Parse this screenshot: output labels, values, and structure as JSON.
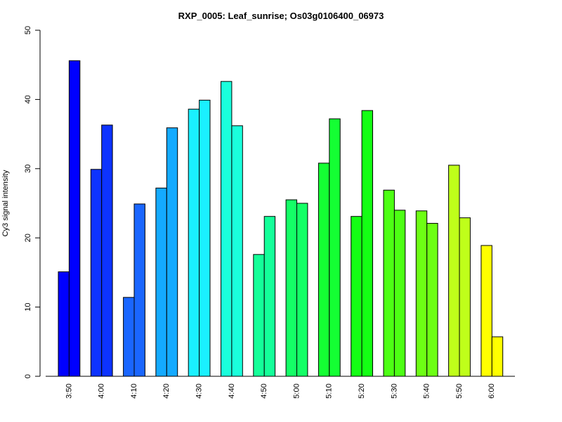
{
  "chart_data": {
    "type": "bar",
    "title": "RXP_0005: Leaf_sunrise; Os03g0106400_06973",
    "xlabel": "",
    "ylabel": "Cy3 signal intensity",
    "ylim": [
      0,
      50
    ],
    "yticks": [
      0,
      10,
      20,
      30,
      40,
      50
    ],
    "grid": false,
    "legend": "none",
    "categories": [
      "3:50",
      "4:00",
      "4:10",
      "4:20",
      "4:30",
      "4:40",
      "4:50",
      "5:00",
      "5:10",
      "5:20",
      "5:30",
      "5:40",
      "5:50",
      "6:00"
    ],
    "colors": [
      "#0000FF",
      "#0D33FF",
      "#1A66FF",
      "#14AAFF",
      "#1AF0FF",
      "#1AFFDC",
      "#14FF99",
      "#14FF66",
      "#14FF33",
      "#14FF14",
      "#4DFF14",
      "#6DFF14",
      "#BFFF1A",
      "#FFFF00"
    ],
    "series": [
      {
        "values": [
          15.1,
          29.9,
          11.4,
          27.2,
          38.6,
          42.6,
          17.6,
          25.5,
          30.8,
          23.1,
          26.9,
          23.9,
          30.5,
          18.9
        ]
      },
      {
        "values": [
          45.6,
          36.3,
          24.9,
          35.9,
          39.9,
          36.2,
          23.1,
          25.0,
          37.2,
          38.4,
          24.0,
          22.1,
          22.9,
          5.7
        ]
      }
    ]
  }
}
